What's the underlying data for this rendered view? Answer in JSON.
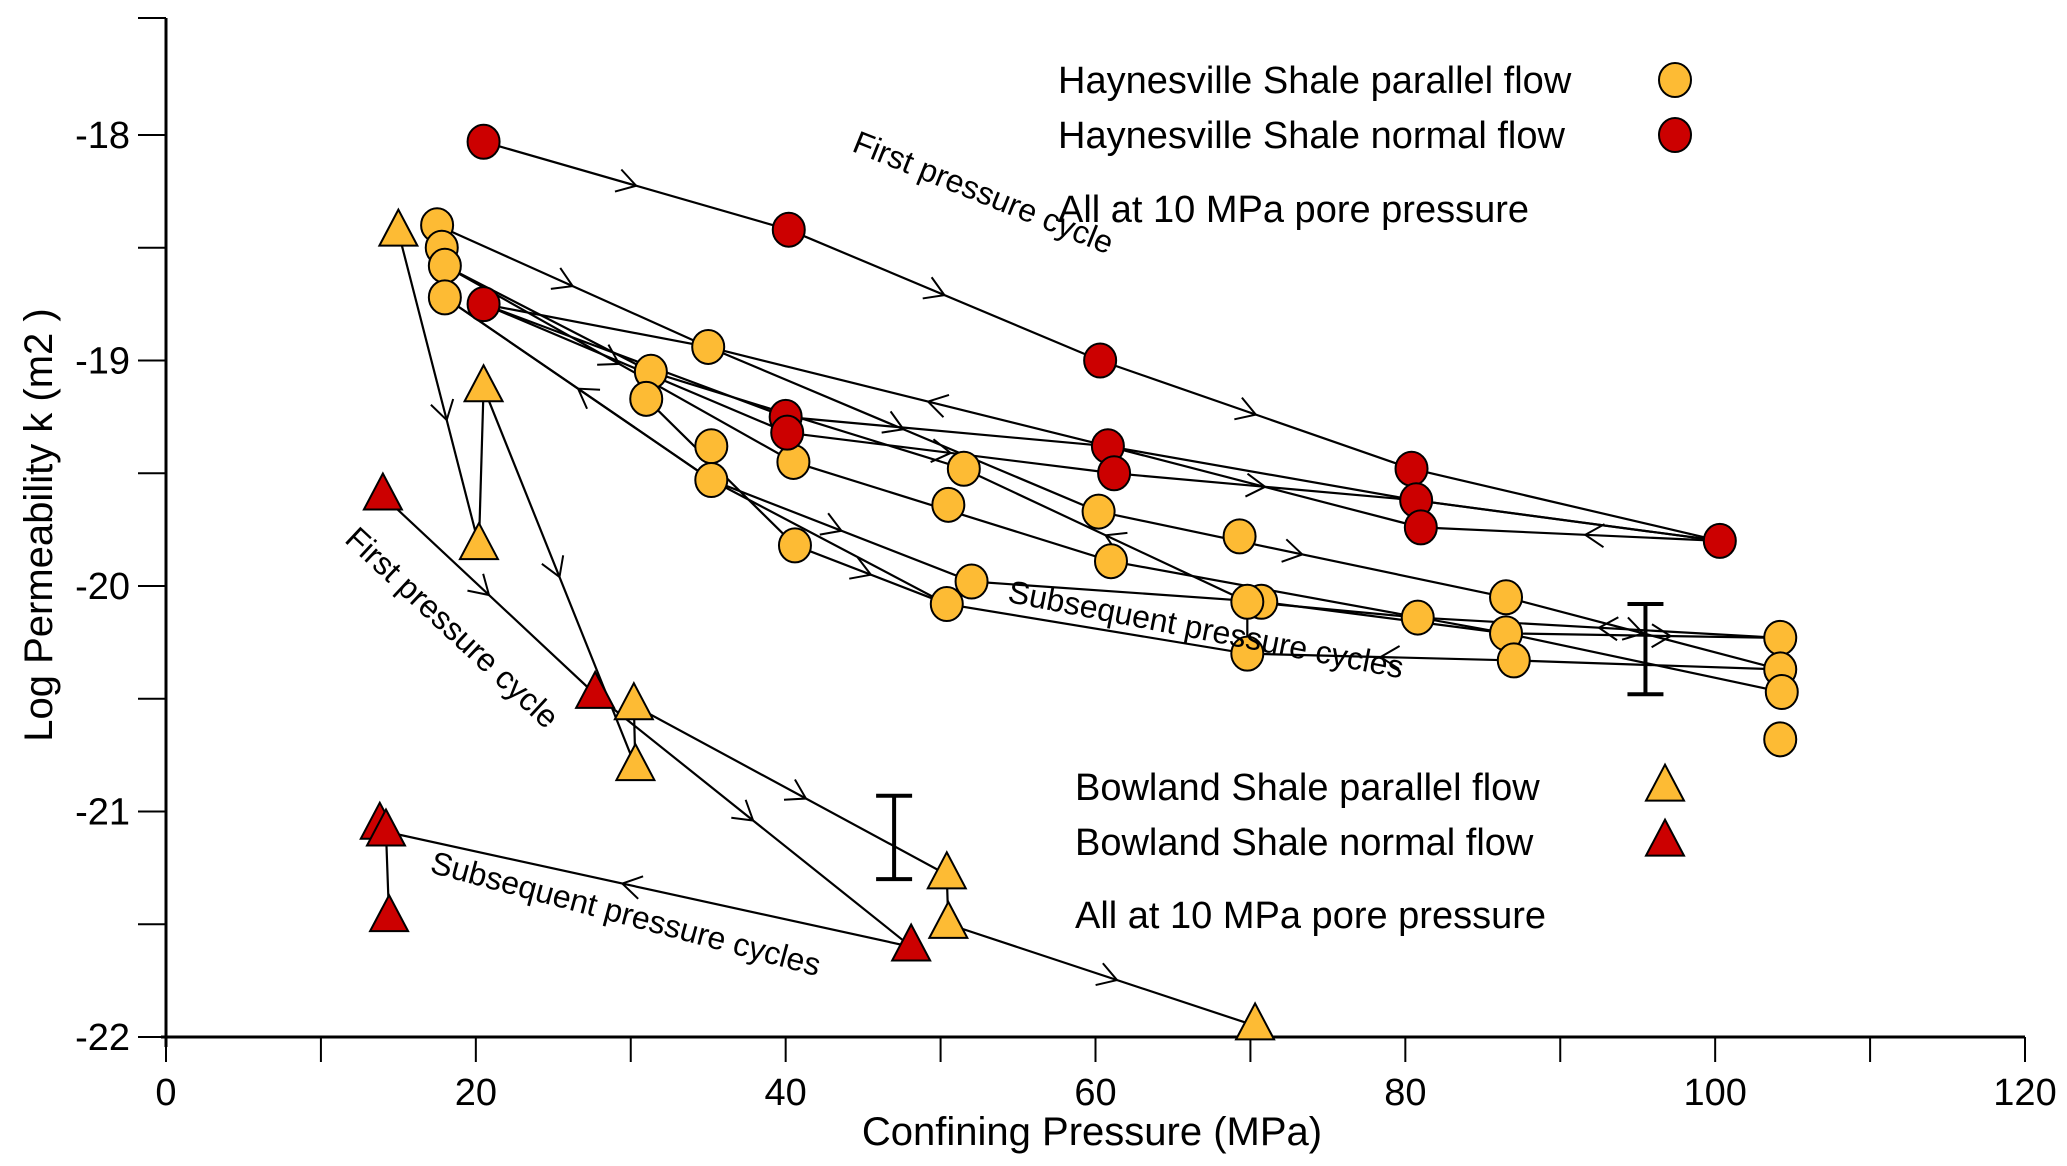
{
  "chart_data": {
    "type": "scatter",
    "title": "",
    "xlabel": "Confining Pressure  (MPa)",
    "ylabel": "Log  Permeability  k (m2 )",
    "xlim": [
      0,
      120
    ],
    "ylim": [
      -22,
      -17.5
    ],
    "x_ticks_major": [
      0,
      20,
      40,
      60,
      80,
      100,
      120
    ],
    "x_tick_labels": [
      "0",
      "20",
      "40",
      "60",
      "80",
      "100",
      "120"
    ],
    "x_ticks_minor": [
      10,
      30,
      50,
      70,
      90,
      110
    ],
    "y_ticks_major": [
      -18,
      -19,
      -20,
      -21,
      -22
    ],
    "y_tick_labels": [
      "-18",
      "-19",
      "-20",
      "-21",
      "-22"
    ],
    "y_ticks_minor": [
      -18.5,
      -19.5,
      -20.5,
      -21.5
    ],
    "grid": false,
    "colors": {
      "orange": "#fdbb34",
      "red": "#cc0000",
      "line": "#000000"
    },
    "legends": [
      {
        "position": "top-right",
        "entries": [
          {
            "label": "Haynesville Shale parallel flow",
            "marker": "circle",
            "color": "#fdbb34"
          },
          {
            "label": "Haynesville Shale normal flow",
            "marker": "circle",
            "color": "#cc0000"
          }
        ],
        "note": "All at 10 MPa pore pressure"
      },
      {
        "position": "bottom-right",
        "entries": [
          {
            "label": "Bowland Shale parallel flow",
            "marker": "triangle",
            "color": "#fdbb34"
          },
          {
            "label": "Bowland Shale normal flow",
            "marker": "triangle",
            "color": "#cc0000"
          }
        ],
        "note": "All at 10 MPa pore pressure"
      }
    ],
    "series": [
      {
        "name": "Haynesville Shale parallel flow",
        "marker": "circle",
        "color": "#fdbb34",
        "points": [
          [
            17.5,
            -18.4
          ],
          [
            17.8,
            -18.5
          ],
          [
            18,
            -18.58
          ],
          [
            18,
            -18.72
          ],
          [
            35,
            -18.94
          ],
          [
            31.3,
            -19.05
          ],
          [
            31,
            -19.17
          ],
          [
            35.2,
            -19.38
          ],
          [
            35.2,
            -19.53
          ],
          [
            40.5,
            -19.45
          ],
          [
            40.6,
            -19.82
          ],
          [
            51.5,
            -19.48
          ],
          [
            50.5,
            -19.64
          ],
          [
            52,
            -19.98
          ],
          [
            50.4,
            -20.08
          ],
          [
            60.2,
            -19.67
          ],
          [
            61,
            -19.89
          ],
          [
            69.3,
            -19.78
          ],
          [
            70.7,
            -20.07
          ],
          [
            69.8,
            -20.07
          ],
          [
            69.8,
            -20.3
          ],
          [
            80.8,
            -20.14
          ],
          [
            86.5,
            -20.05
          ],
          [
            86.5,
            -20.21
          ],
          [
            87,
            -20.33
          ],
          [
            104.2,
            -20.23
          ],
          [
            104.2,
            -20.37
          ],
          [
            104.3,
            -20.47
          ],
          [
            104.2,
            -20.68
          ]
        ]
      },
      {
        "name": "Haynesville Shale normal flow",
        "marker": "circle",
        "color": "#cc0000",
        "points": [
          [
            20.5,
            -18.03
          ],
          [
            40.2,
            -18.42
          ],
          [
            20.5,
            -18.75
          ],
          [
            60.3,
            -19.0
          ],
          [
            40,
            -19.25
          ],
          [
            40.1,
            -19.32
          ],
          [
            60.8,
            -19.38
          ],
          [
            61.2,
            -19.5
          ],
          [
            80.4,
            -19.48
          ],
          [
            80.7,
            -19.62
          ],
          [
            81,
            -19.74
          ],
          [
            100.3,
            -19.8
          ]
        ]
      },
      {
        "name": "Bowland Shale parallel flow",
        "marker": "triangle",
        "color": "#fdbb34",
        "points": [
          [
            15,
            -18.43
          ],
          [
            20.5,
            -19.12
          ],
          [
            20.2,
            -19.82
          ],
          [
            30.2,
            -20.53
          ],
          [
            30.3,
            -20.8
          ],
          [
            50.4,
            -21.28
          ],
          [
            50.5,
            -21.5
          ],
          [
            70.3,
            -21.95
          ]
        ]
      },
      {
        "name": "Bowland Shale normal flow",
        "marker": "triangle",
        "color": "#cc0000",
        "points": [
          [
            14,
            -19.6
          ],
          [
            27.7,
            -20.48
          ],
          [
            13.8,
            -21.06
          ],
          [
            14.2,
            -21.09
          ],
          [
            14.4,
            -21.47
          ],
          [
            48.1,
            -21.6
          ]
        ]
      }
    ],
    "paths": [
      {
        "name": "haynesville-normal-first-cycle",
        "points": [
          [
            20.5,
            -18.03
          ],
          [
            40.2,
            -18.42
          ],
          [
            60.3,
            -19.0
          ],
          [
            80.4,
            -19.48
          ],
          [
            100.3,
            -19.8
          ]
        ],
        "arrows": [
          0.5,
          0.5,
          0.5,
          0
        ]
      },
      {
        "name": "haynesville-normal-unload-1",
        "points": [
          [
            100.3,
            -19.8
          ],
          [
            80.7,
            -19.62
          ],
          [
            60.8,
            -19.38
          ],
          [
            40,
            -19.25
          ],
          [
            20.5,
            -18.75
          ]
        ],
        "arrows": [
          0,
          0,
          0,
          0
        ]
      },
      {
        "name": "haynesville-normal-reload-1",
        "points": [
          [
            20.5,
            -18.75
          ],
          [
            40.1,
            -19.32
          ],
          [
            61.2,
            -19.5
          ],
          [
            80.7,
            -19.62
          ],
          [
            100.3,
            -19.8
          ]
        ],
        "arrows": [
          0,
          0.5,
          0.5,
          0
        ]
      },
      {
        "name": "haynesville-normal-unload-2",
        "points": [
          [
            100.3,
            -19.8
          ],
          [
            81,
            -19.74
          ],
          [
            60.8,
            -19.38
          ],
          [
            35,
            -18.94
          ],
          [
            20.5,
            -18.75
          ]
        ],
        "arrows": [
          0.45,
          0,
          0.45,
          0
        ]
      },
      {
        "name": "haynesville-parallel-first-cycle",
        "points": [
          [
            17.5,
            -18.4
          ],
          [
            35,
            -18.94
          ],
          [
            60.2,
            -19.67
          ],
          [
            86.5,
            -20.05
          ],
          [
            104.2,
            -20.37
          ]
        ],
        "arrows": [
          0.5,
          0.5,
          0.5,
          0.5
        ]
      },
      {
        "name": "haynesville-parallel-unload-1",
        "points": [
          [
            104.2,
            -20.23
          ],
          [
            80.8,
            -20.14
          ],
          [
            69.8,
            -20.07
          ],
          [
            51.5,
            -19.48
          ],
          [
            31.3,
            -19.05
          ],
          [
            18,
            -18.58
          ]
        ],
        "arrows": [
          0.5,
          0,
          0.5,
          0,
          0
        ]
      },
      {
        "name": "haynesville-parallel-reload-1",
        "points": [
          [
            18,
            -18.58
          ],
          [
            40.5,
            -19.45
          ],
          [
            61,
            -19.89
          ],
          [
            86.5,
            -20.21
          ],
          [
            104.3,
            -20.47
          ]
        ],
        "arrows": [
          0.5,
          0,
          0,
          0
        ]
      },
      {
        "name": "haynesville-parallel-unload-2",
        "points": [
          [
            104.2,
            -20.37
          ],
          [
            87,
            -20.33
          ],
          [
            69.8,
            -20.3
          ],
          [
            50.4,
            -20.08
          ],
          [
            35.2,
            -19.53
          ],
          [
            18,
            -18.72
          ]
        ],
        "arrows": [
          0,
          0.5,
          0,
          0,
          0.5
        ]
      },
      {
        "name": "haynesville-parallel-reload-2",
        "points": [
          [
            18,
            -18.72
          ],
          [
            35.2,
            -19.53
          ],
          [
            52,
            -19.98
          ],
          [
            70.7,
            -20.07
          ],
          [
            86.5,
            -20.21
          ],
          [
            104.2,
            -20.23
          ]
        ],
        "arrows": [
          0,
          0.5,
          0,
          0,
          0.6
        ]
      },
      {
        "name": "haynesville-parallel-extra",
        "points": [
          [
            31,
            -19.17
          ],
          [
            40.6,
            -19.82
          ],
          [
            50.4,
            -20.08
          ]
        ],
        "arrows": [
          0,
          0.5
        ]
      },
      {
        "name": "haynesville-parallel-vertical",
        "points": [
          [
            69.8,
            -20.07
          ],
          [
            69.8,
            -20.3
          ]
        ],
        "arrows": [
          0
        ]
      },
      {
        "name": "bowland-parallel-a",
        "points": [
          [
            15,
            -18.43
          ],
          [
            20.2,
            -19.82
          ]
        ],
        "arrows": [
          0.6
        ]
      },
      {
        "name": "bowland-parallel-b",
        "points": [
          [
            20.2,
            -19.82
          ],
          [
            20.5,
            -19.12
          ]
        ],
        "arrows": [
          0
        ]
      },
      {
        "name": "bowland-parallel-c",
        "points": [
          [
            20.5,
            -19.12
          ],
          [
            30.3,
            -20.8
          ]
        ],
        "arrows": [
          0.5
        ]
      },
      {
        "name": "bowland-parallel-d",
        "points": [
          [
            30.3,
            -20.8
          ],
          [
            30.2,
            -20.53
          ],
          [
            50.4,
            -21.28
          ],
          [
            50.5,
            -21.5
          ],
          [
            70.3,
            -21.95
          ]
        ],
        "arrows": [
          0,
          0.55,
          0,
          0.55
        ]
      },
      {
        "name": "bowland-normal-first-cycle",
        "points": [
          [
            14,
            -19.6
          ],
          [
            27.7,
            -20.48
          ],
          [
            48.1,
            -21.6
          ]
        ],
        "arrows": [
          0.5,
          0.5
        ]
      },
      {
        "name": "bowland-normal-subsequent",
        "points": [
          [
            48.1,
            -21.6
          ],
          [
            14.2,
            -21.09
          ],
          [
            14.4,
            -21.47
          ]
        ],
        "arrows": [
          0.55,
          0
        ]
      }
    ],
    "error_bars": [
      {
        "x": 95.5,
        "y_low": -20.48,
        "y_high": -20.08
      },
      {
        "x": 47,
        "y_low": -21.3,
        "y_high": -20.93
      }
    ],
    "annotations": [
      {
        "text": "First pressure cycle",
        "x": 52.5,
        "y": -18.3,
        "rotation_deg": 22
      },
      {
        "text": "Subsequent pressure cycles",
        "x": 67,
        "y": -20.24,
        "rotation_deg": 11
      },
      {
        "text": "First pressure cycle",
        "x": 18,
        "y": -20.22,
        "rotation_deg": 43
      },
      {
        "text": "Subsequent pressure cycles",
        "x": 29.5,
        "y": -21.5,
        "rotation_deg": 15
      }
    ]
  }
}
